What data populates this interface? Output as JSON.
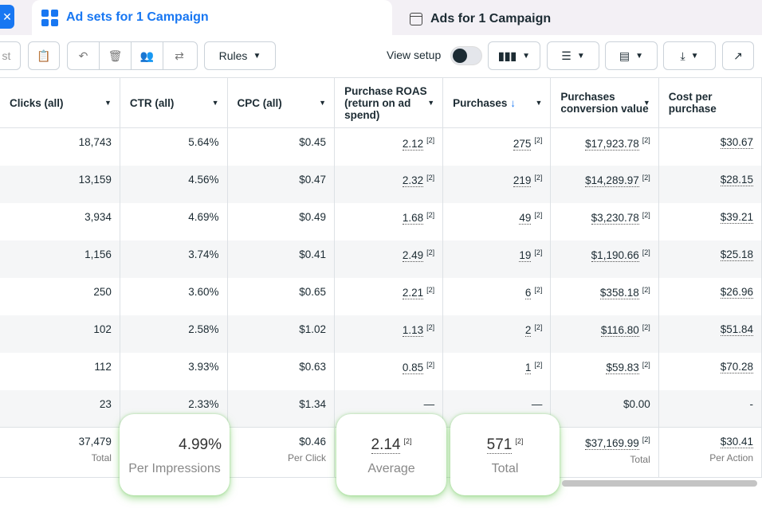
{
  "tabs": [
    {
      "label": "Ad sets for 1 Campaign",
      "icon": "grid-icon",
      "active": true
    },
    {
      "label": "Ads for 1 Campaign",
      "icon": "window-icon",
      "active": false
    }
  ],
  "toolbar": {
    "partial_label": "st",
    "rules_label": "Rules",
    "view_setup_label": "View setup",
    "view_setup_on": false
  },
  "columns": [
    {
      "label": "Clicks (all)"
    },
    {
      "label": "CTR (all)"
    },
    {
      "label": "CPC (all)"
    },
    {
      "label": "Purchase ROAS (return on ad spend)"
    },
    {
      "label": "Purchases",
      "sort_icon": "↓"
    },
    {
      "label": "Purchases conversion value"
    },
    {
      "label": "Cost per purchase"
    }
  ],
  "rows": [
    [
      "18,743",
      "5.64%",
      "$0.45",
      "2.12",
      "275",
      "$17,923.78",
      "$30.67"
    ],
    [
      "13,159",
      "4.56%",
      "$0.47",
      "2.32",
      "219",
      "$14,289.97",
      "$28.15"
    ],
    [
      "3,934",
      "4.69%",
      "$0.49",
      "1.68",
      "49",
      "$3,230.78",
      "$39.21"
    ],
    [
      "1,156",
      "3.74%",
      "$0.41",
      "2.49",
      "19",
      "$1,190.66",
      "$25.18"
    ],
    [
      "250",
      "3.60%",
      "$0.65",
      "2.21",
      "6",
      "$358.18",
      "$26.96"
    ],
    [
      "102",
      "2.58%",
      "$1.02",
      "1.13",
      "2",
      "$116.80",
      "$51.84"
    ],
    [
      "112",
      "3.93%",
      "$0.63",
      "0.85",
      "1",
      "$59.83",
      "$70.28"
    ],
    [
      "23",
      "2.33%",
      "$1.34",
      "—",
      "—",
      "$0.00",
      "-"
    ]
  ],
  "footnote": "[2]",
  "totals": [
    {
      "value": "37,479",
      "label": "Total"
    },
    {
      "value": "4.99%",
      "label": "Per Impressions"
    },
    {
      "value": "$0.46",
      "label": "Per Click"
    },
    {
      "value": "2.14",
      "label": "Average"
    },
    {
      "value": "571",
      "label": "Total"
    },
    {
      "value": "$37,169.99",
      "label": "Total"
    },
    {
      "value": "$30.41",
      "label": "Per Action"
    }
  ],
  "colors": {
    "accent": "#1877f2",
    "highlight_glow": "#6ec85a"
  }
}
